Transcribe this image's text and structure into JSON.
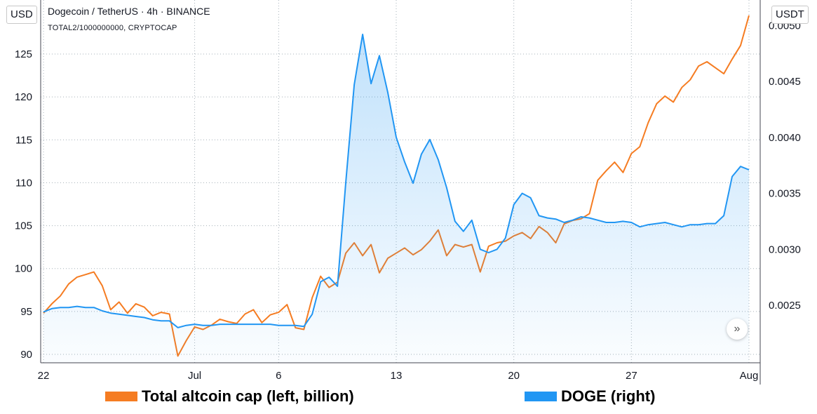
{
  "header": {
    "title": "Dogecoin / TetherUS · 4h · BINANCE",
    "subtitle": "TOTAL2/1000000000, CRYPTOCAP"
  },
  "left_unit": "USD",
  "right_unit": "USDT",
  "legend": {
    "altcoin": "Total altcoin cap (left, billion)",
    "doge": "DOGE (right)"
  },
  "colors": {
    "altcoin": "#f57c22",
    "doge": "#2196f3",
    "grid": "#a6b0b8"
  },
  "icons": {
    "scroll": "double-chevron-right-icon"
  },
  "chart_data": {
    "type": "line",
    "x_tick_labels": [
      "22",
      "Jul",
      "6",
      "13",
      "20",
      "27",
      "Aug"
    ],
    "x_ticks": [
      "2020-06-22",
      "2020-07-01",
      "2020-07-06",
      "2020-07-13",
      "2020-07-20",
      "2020-07-27",
      "2020-08-03"
    ],
    "x_range": [
      "2020-06-22",
      "2020-08-03"
    ],
    "left_axis": {
      "ticks": [
        90,
        95,
        100,
        105,
        110,
        115,
        120,
        125
      ],
      "ylim": [
        89.5,
        130.5
      ]
    },
    "right_axis": {
      "ticks": [
        0.0025,
        0.003,
        0.0035,
        0.004,
        0.0045,
        0.005
      ],
      "tick_labels": [
        "0.0025",
        "0.0030",
        "0.0035",
        "0.0040",
        "0.0045",
        "0.0050"
      ],
      "ylim": [
        0.002,
        0.0051
      ]
    },
    "grid": true,
    "series": [
      {
        "name": "Total altcoin cap (left, billion)",
        "axis": "left",
        "points": [
          [
            "2020-06-22",
            94.8
          ],
          [
            "2020-06-22T12:00",
            95.9
          ],
          [
            "2020-06-23",
            96.8
          ],
          [
            "2020-06-23T12:00",
            98.2
          ],
          [
            "2020-06-24",
            99.0
          ],
          [
            "2020-06-24T12:00",
            99.3
          ],
          [
            "2020-06-25",
            99.6
          ],
          [
            "2020-06-25T12:00",
            98.0
          ],
          [
            "2020-06-26",
            95.2
          ],
          [
            "2020-06-26T12:00",
            96.1
          ],
          [
            "2020-06-27",
            94.8
          ],
          [
            "2020-06-27T12:00",
            95.9
          ],
          [
            "2020-06-28",
            95.5
          ],
          [
            "2020-06-28T12:00",
            94.5
          ],
          [
            "2020-06-29",
            94.9
          ],
          [
            "2020-06-29T12:00",
            94.7
          ],
          [
            "2020-06-30",
            89.8
          ],
          [
            "2020-06-30T12:00",
            91.6
          ],
          [
            "2020-07-01",
            93.2
          ],
          [
            "2020-07-01T12:00",
            92.9
          ],
          [
            "2020-07-02",
            93.4
          ],
          [
            "2020-07-02T12:00",
            94.1
          ],
          [
            "2020-07-03",
            93.8
          ],
          [
            "2020-07-03T12:00",
            93.6
          ],
          [
            "2020-07-04",
            94.7
          ],
          [
            "2020-07-04T12:00",
            95.2
          ],
          [
            "2020-07-05",
            93.7
          ],
          [
            "2020-07-05T12:00",
            94.6
          ],
          [
            "2020-07-06",
            94.9
          ],
          [
            "2020-07-06T12:00",
            95.8
          ],
          [
            "2020-07-07",
            93.1
          ],
          [
            "2020-07-07T12:00",
            92.9
          ],
          [
            "2020-07-08",
            96.6
          ],
          [
            "2020-07-08T12:00",
            99.1
          ],
          [
            "2020-07-09",
            97.8
          ],
          [
            "2020-07-09T12:00",
            98.4
          ],
          [
            "2020-07-10",
            101.8
          ],
          [
            "2020-07-10T12:00",
            103.0
          ],
          [
            "2020-07-11",
            101.5
          ],
          [
            "2020-07-11T12:00",
            102.8
          ],
          [
            "2020-07-12",
            99.5
          ],
          [
            "2020-07-12T12:00",
            101.2
          ],
          [
            "2020-07-13",
            101.8
          ],
          [
            "2020-07-13T12:00",
            102.4
          ],
          [
            "2020-07-14",
            101.6
          ],
          [
            "2020-07-14T12:00",
            102.2
          ],
          [
            "2020-07-15",
            103.2
          ],
          [
            "2020-07-15T12:00",
            104.5
          ],
          [
            "2020-07-16",
            101.5
          ],
          [
            "2020-07-16T12:00",
            102.8
          ],
          [
            "2020-07-17",
            102.5
          ],
          [
            "2020-07-17T12:00",
            102.8
          ],
          [
            "2020-07-18",
            99.6
          ],
          [
            "2020-07-18T12:00",
            102.6
          ],
          [
            "2020-07-19",
            103.0
          ],
          [
            "2020-07-19T12:00",
            103.2
          ],
          [
            "2020-07-20",
            103.8
          ],
          [
            "2020-07-20T12:00",
            104.2
          ],
          [
            "2020-07-21",
            103.5
          ],
          [
            "2020-07-21T12:00",
            104.9
          ],
          [
            "2020-07-22",
            104.2
          ],
          [
            "2020-07-22T12:00",
            103.0
          ],
          [
            "2020-07-23",
            105.2
          ],
          [
            "2020-07-23T12:00",
            105.6
          ],
          [
            "2020-07-24",
            105.8
          ],
          [
            "2020-07-24T12:00",
            106.4
          ],
          [
            "2020-07-25",
            110.3
          ],
          [
            "2020-07-25T12:00",
            111.4
          ],
          [
            "2020-07-26",
            112.4
          ],
          [
            "2020-07-26T12:00",
            111.2
          ],
          [
            "2020-07-27",
            113.4
          ],
          [
            "2020-07-27T12:00",
            114.2
          ],
          [
            "2020-07-28",
            117.0
          ],
          [
            "2020-07-28T12:00",
            119.2
          ],
          [
            "2020-07-29",
            120.1
          ],
          [
            "2020-07-29T12:00",
            119.4
          ],
          [
            "2020-07-30",
            121.1
          ],
          [
            "2020-07-30T12:00",
            122.0
          ],
          [
            "2020-07-31",
            123.6
          ],
          [
            "2020-07-31T12:00",
            124.1
          ],
          [
            "2020-08-01",
            123.4
          ],
          [
            "2020-08-01T12:00",
            122.7
          ],
          [
            "2020-08-02",
            124.4
          ],
          [
            "2020-08-02T12:00",
            126.0
          ],
          [
            "2020-08-03",
            129.5
          ]
        ]
      },
      {
        "name": "DOGE (right)",
        "axis": "right",
        "points": [
          [
            "2020-06-22",
            0.00244
          ],
          [
            "2020-06-22T12:00",
            0.00247
          ],
          [
            "2020-06-23",
            0.00248
          ],
          [
            "2020-06-23T12:00",
            0.00248
          ],
          [
            "2020-06-24",
            0.00249
          ],
          [
            "2020-06-24T12:00",
            0.00248
          ],
          [
            "2020-06-25",
            0.00248
          ],
          [
            "2020-06-25T12:00",
            0.00245
          ],
          [
            "2020-06-26",
            0.00243
          ],
          [
            "2020-06-26T12:00",
            0.00242
          ],
          [
            "2020-06-27",
            0.00241
          ],
          [
            "2020-06-27T12:00",
            0.0024
          ],
          [
            "2020-06-28",
            0.00239
          ],
          [
            "2020-06-28T12:00",
            0.00237
          ],
          [
            "2020-06-29",
            0.00236
          ],
          [
            "2020-06-29T12:00",
            0.00236
          ],
          [
            "2020-06-30",
            0.0023
          ],
          [
            "2020-06-30T12:00",
            0.00232
          ],
          [
            "2020-07-01",
            0.00233
          ],
          [
            "2020-07-01T12:00",
            0.00232
          ],
          [
            "2020-07-02",
            0.00232
          ],
          [
            "2020-07-02T12:00",
            0.00233
          ],
          [
            "2020-07-03",
            0.00233
          ],
          [
            "2020-07-03T12:00",
            0.00233
          ],
          [
            "2020-07-04",
            0.00233
          ],
          [
            "2020-07-04T12:00",
            0.00233
          ],
          [
            "2020-07-05",
            0.00233
          ],
          [
            "2020-07-05T12:00",
            0.00233
          ],
          [
            "2020-07-06",
            0.00232
          ],
          [
            "2020-07-06T12:00",
            0.00232
          ],
          [
            "2020-07-07",
            0.00232
          ],
          [
            "2020-07-07T12:00",
            0.00231
          ],
          [
            "2020-07-08",
            0.00242
          ],
          [
            "2020-07-08T12:00",
            0.00271
          ],
          [
            "2020-07-09",
            0.00275
          ],
          [
            "2020-07-09T12:00",
            0.00267
          ],
          [
            "2020-07-10",
            0.0036
          ],
          [
            "2020-07-10T12:00",
            0.00447
          ],
          [
            "2020-07-11",
            0.00492
          ],
          [
            "2020-07-11T12:00",
            0.00448
          ],
          [
            "2020-07-12",
            0.00473
          ],
          [
            "2020-07-12T12:00",
            0.0044
          ],
          [
            "2020-07-13",
            0.004
          ],
          [
            "2020-07-13T12:00",
            0.00378
          ],
          [
            "2020-07-14",
            0.00359
          ],
          [
            "2020-07-14T12:00",
            0.00385
          ],
          [
            "2020-07-15",
            0.00398
          ],
          [
            "2020-07-15T12:00",
            0.0038
          ],
          [
            "2020-07-16",
            0.00355
          ],
          [
            "2020-07-16T12:00",
            0.00325
          ],
          [
            "2020-07-17",
            0.00316
          ],
          [
            "2020-07-17T12:00",
            0.00326
          ],
          [
            "2020-07-18",
            0.003
          ],
          [
            "2020-07-18T12:00",
            0.00297
          ],
          [
            "2020-07-19",
            0.003
          ],
          [
            "2020-07-19T12:00",
            0.0031
          ],
          [
            "2020-07-20",
            0.0034
          ],
          [
            "2020-07-20T12:00",
            0.0035
          ],
          [
            "2020-07-21",
            0.00346
          ],
          [
            "2020-07-21T12:00",
            0.0033
          ],
          [
            "2020-07-22",
            0.00328
          ],
          [
            "2020-07-22T12:00",
            0.00327
          ],
          [
            "2020-07-23",
            0.00324
          ],
          [
            "2020-07-23T12:00",
            0.00326
          ],
          [
            "2020-07-24",
            0.00329
          ],
          [
            "2020-07-24T12:00",
            0.00328
          ],
          [
            "2020-07-25",
            0.00326
          ],
          [
            "2020-07-25T12:00",
            0.00324
          ],
          [
            "2020-07-26",
            0.00324
          ],
          [
            "2020-07-26T12:00",
            0.00325
          ],
          [
            "2020-07-27",
            0.00324
          ],
          [
            "2020-07-27T12:00",
            0.0032
          ],
          [
            "2020-07-28",
            0.00322
          ],
          [
            "2020-07-28T12:00",
            0.00323
          ],
          [
            "2020-07-29",
            0.00324
          ],
          [
            "2020-07-29T12:00",
            0.00322
          ],
          [
            "2020-07-30",
            0.0032
          ],
          [
            "2020-07-30T12:00",
            0.00322
          ],
          [
            "2020-07-31",
            0.00322
          ],
          [
            "2020-07-31T12:00",
            0.00323
          ],
          [
            "2020-08-01",
            0.00323
          ],
          [
            "2020-08-01T12:00",
            0.0033
          ],
          [
            "2020-08-02",
            0.00365
          ],
          [
            "2020-08-02T12:00",
            0.00374
          ],
          [
            "2020-08-03",
            0.00371
          ]
        ]
      }
    ]
  }
}
